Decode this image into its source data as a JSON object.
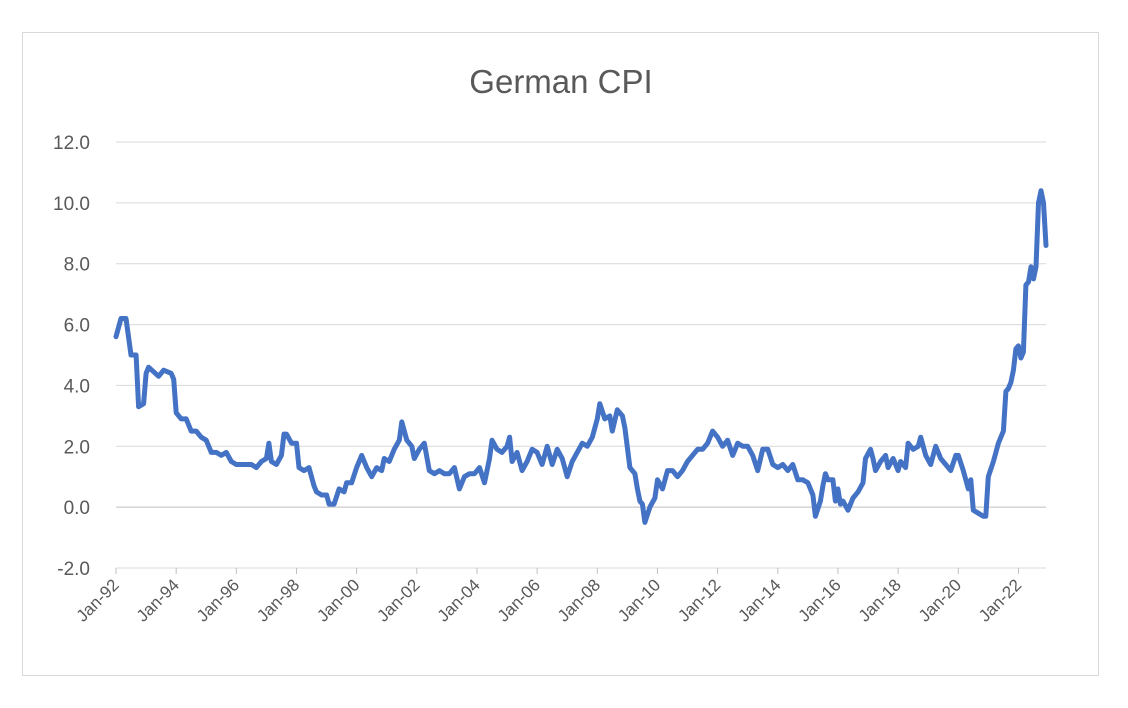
{
  "chart_data": {
    "type": "line",
    "title": "German CPI",
    "xlabel": "",
    "ylabel": "",
    "ylim": [
      -2.0,
      12.0
    ],
    "yticks": [
      "-2.0",
      "0.0",
      "2.0",
      "4.0",
      "6.0",
      "8.0",
      "10.0",
      "12.0"
    ],
    "xticks": [
      "Jan-92",
      "Jan-94",
      "Jan-96",
      "Jan-98",
      "Jan-00",
      "Jan-02",
      "Jan-04",
      "Jan-06",
      "Jan-08",
      "Jan-10",
      "Jan-12",
      "Jan-14",
      "Jan-16",
      "Jan-18",
      "Jan-20",
      "Jan-22"
    ],
    "grid": true,
    "legend": "none",
    "x_range": [
      "Jan-92",
      "Dec-22"
    ],
    "series": [
      {
        "color": "#4472c4",
        "points": [
          [
            "Jan-92",
            5.6
          ],
          [
            "Mar-92",
            6.2
          ],
          [
            "May-92",
            6.2
          ],
          [
            "Jul-92",
            5.0
          ],
          [
            "Sep-92",
            5.0
          ],
          [
            "Oct-92",
            3.3
          ],
          [
            "Dec-92",
            3.4
          ],
          [
            "Jan-93",
            4.4
          ],
          [
            "Feb-93",
            4.6
          ],
          [
            "Jun-93",
            4.3
          ],
          [
            "Aug-93",
            4.5
          ],
          [
            "Nov-93",
            4.4
          ],
          [
            "Dec-93",
            4.2
          ],
          [
            "Jan-94",
            3.1
          ],
          [
            "Mar-94",
            2.9
          ],
          [
            "May-94",
            2.9
          ],
          [
            "Jul-94",
            2.5
          ],
          [
            "Sep-94",
            2.5
          ],
          [
            "Nov-94",
            2.3
          ],
          [
            "Jan-95",
            2.2
          ],
          [
            "Mar-95",
            1.8
          ],
          [
            "May-95",
            1.8
          ],
          [
            "Jul-95",
            1.7
          ],
          [
            "Sep-95",
            1.8
          ],
          [
            "Nov-95",
            1.5
          ],
          [
            "Jan-96",
            1.4
          ],
          [
            "Mar-96",
            1.4
          ],
          [
            "May-96",
            1.4
          ],
          [
            "Jul-96",
            1.4
          ],
          [
            "Sep-96",
            1.3
          ],
          [
            "Nov-96",
            1.5
          ],
          [
            "Jan-97",
            1.6
          ],
          [
            "Feb-97",
            2.1
          ],
          [
            "Mar-97",
            1.5
          ],
          [
            "May-97",
            1.4
          ],
          [
            "Jul-97",
            1.7
          ],
          [
            "Aug-97",
            2.4
          ],
          [
            "Sep-97",
            2.4
          ],
          [
            "Nov-97",
            2.1
          ],
          [
            "Jan-98",
            2.1
          ],
          [
            "Feb-98",
            1.3
          ],
          [
            "Apr-98",
            1.2
          ],
          [
            "Jun-98",
            1.3
          ],
          [
            "Aug-98",
            0.7
          ],
          [
            "Sep-98",
            0.5
          ],
          [
            "Nov-98",
            0.4
          ],
          [
            "Jan-99",
            0.4
          ],
          [
            "Feb-99",
            0.1
          ],
          [
            "Apr-99",
            0.1
          ],
          [
            "Jun-99",
            0.6
          ],
          [
            "Aug-99",
            0.5
          ],
          [
            "Sep-99",
            0.8
          ],
          [
            "Nov-99",
            0.8
          ],
          [
            "Jan-00",
            1.3
          ],
          [
            "Mar-00",
            1.7
          ],
          [
            "May-00",
            1.3
          ],
          [
            "Jul-00",
            1.0
          ],
          [
            "Sep-00",
            1.3
          ],
          [
            "Nov-00",
            1.2
          ],
          [
            "Dec-00",
            1.6
          ],
          [
            "Feb-01",
            1.5
          ],
          [
            "Apr-01",
            1.9
          ],
          [
            "Jun-01",
            2.2
          ],
          [
            "Jul-01",
            2.8
          ],
          [
            "Sep-01",
            2.2
          ],
          [
            "Nov-01",
            2.0
          ],
          [
            "Dec-01",
            1.6
          ],
          [
            "Feb-02",
            1.9
          ],
          [
            "Apr-02",
            2.1
          ],
          [
            "Jun-02",
            1.2
          ],
          [
            "Aug-02",
            1.1
          ],
          [
            "Oct-02",
            1.2
          ],
          [
            "Dec-02",
            1.1
          ],
          [
            "Feb-03",
            1.1
          ],
          [
            "Apr-03",
            1.3
          ],
          [
            "Jun-03",
            0.6
          ],
          [
            "Aug-03",
            1.0
          ],
          [
            "Oct-03",
            1.1
          ],
          [
            "Dec-03",
            1.1
          ],
          [
            "Feb-04",
            1.3
          ],
          [
            "Apr-04",
            0.8
          ],
          [
            "Jun-04",
            1.6
          ],
          [
            "Jul-04",
            2.2
          ],
          [
            "Sep-04",
            1.9
          ],
          [
            "Nov-04",
            1.8
          ],
          [
            "Jan-05",
            2.0
          ],
          [
            "Feb-05",
            2.3
          ],
          [
            "Mar-05",
            1.5
          ],
          [
            "May-05",
            1.8
          ],
          [
            "Jul-05",
            1.2
          ],
          [
            "Sep-05",
            1.5
          ],
          [
            "Nov-05",
            1.9
          ],
          [
            "Jan-06",
            1.8
          ],
          [
            "Mar-06",
            1.4
          ],
          [
            "May-06",
            2.0
          ],
          [
            "Jul-06",
            1.4
          ],
          [
            "Sep-06",
            1.9
          ],
          [
            "Nov-06",
            1.6
          ],
          [
            "Jan-07",
            1.0
          ],
          [
            "Mar-07",
            1.5
          ],
          [
            "May-07",
            1.8
          ],
          [
            "Jul-07",
            2.1
          ],
          [
            "Sep-07",
            2.0
          ],
          [
            "Nov-07",
            2.3
          ],
          [
            "Jan-08",
            2.9
          ],
          [
            "Feb-08",
            3.4
          ],
          [
            "Apr-08",
            2.9
          ],
          [
            "Jun-08",
            3.0
          ],
          [
            "Jul-08",
            2.5
          ],
          [
            "Sep-08",
            3.2
          ],
          [
            "Nov-08",
            3.0
          ],
          [
            "Dec-08",
            2.6
          ],
          [
            "Feb-09",
            1.3
          ],
          [
            "Apr-09",
            1.1
          ],
          [
            "May-09",
            0.6
          ],
          [
            "Jun-09",
            0.2
          ],
          [
            "Jul-09",
            0.1
          ],
          [
            "Aug-09",
            -0.5
          ],
          [
            "Oct-09",
            0.0
          ],
          [
            "Dec-09",
            0.3
          ],
          [
            "Jan-10",
            0.9
          ],
          [
            "Mar-10",
            0.6
          ],
          [
            "May-10",
            1.2
          ],
          [
            "Jul-10",
            1.2
          ],
          [
            "Sep-10",
            1.0
          ],
          [
            "Nov-10",
            1.2
          ],
          [
            "Jan-11",
            1.5
          ],
          [
            "Mar-11",
            1.7
          ],
          [
            "May-11",
            1.9
          ],
          [
            "Jul-11",
            1.9
          ],
          [
            "Sep-11",
            2.1
          ],
          [
            "Nov-11",
            2.5
          ],
          [
            "Jan-12",
            2.3
          ],
          [
            "Mar-12",
            2.0
          ],
          [
            "May-12",
            2.2
          ],
          [
            "Jul-12",
            1.7
          ],
          [
            "Sep-12",
            2.1
          ],
          [
            "Nov-12",
            2.0
          ],
          [
            "Jan-13",
            2.0
          ],
          [
            "Mar-13",
            1.7
          ],
          [
            "May-13",
            1.2
          ],
          [
            "Jul-13",
            1.9
          ],
          [
            "Sep-13",
            1.9
          ],
          [
            "Nov-13",
            1.4
          ],
          [
            "Jan-14",
            1.3
          ],
          [
            "Mar-14",
            1.4
          ],
          [
            "May-14",
            1.2
          ],
          [
            "Jul-14",
            1.4
          ],
          [
            "Sep-14",
            0.9
          ],
          [
            "Nov-14",
            0.9
          ],
          [
            "Jan-15",
            0.8
          ],
          [
            "Mar-15",
            0.4
          ],
          [
            "Apr-15",
            -0.3
          ],
          [
            "Jun-15",
            0.2
          ],
          [
            "Jul-15",
            0.7
          ],
          [
            "Aug-15",
            1.1
          ],
          [
            "Sep-15",
            0.9
          ],
          [
            "Nov-15",
            0.9
          ],
          [
            "Dec-15",
            0.2
          ],
          [
            "Jan-16",
            0.6
          ],
          [
            "Feb-16",
            0.1
          ],
          [
            "Mar-16",
            0.2
          ],
          [
            "May-16",
            -0.1
          ],
          [
            "Jul-16",
            0.3
          ],
          [
            "Sep-16",
            0.5
          ],
          [
            "Nov-16",
            0.8
          ],
          [
            "Dec-16",
            1.6
          ],
          [
            "Feb-17",
            1.9
          ],
          [
            "Mar-17",
            1.6
          ],
          [
            "Apr-17",
            1.2
          ],
          [
            "Jun-17",
            1.5
          ],
          [
            "Aug-17",
            1.7
          ],
          [
            "Sep-17",
            1.3
          ],
          [
            "Nov-17",
            1.6
          ],
          [
            "Jan-18",
            1.2
          ],
          [
            "Feb-18",
            1.5
          ],
          [
            "Apr-18",
            1.3
          ],
          [
            "May-18",
            2.1
          ],
          [
            "Jul-18",
            1.9
          ],
          [
            "Sep-18",
            2.0
          ],
          [
            "Oct-18",
            2.3
          ],
          [
            "Dec-18",
            1.7
          ],
          [
            "Feb-19",
            1.4
          ],
          [
            "Apr-19",
            2.0
          ],
          [
            "Jun-19",
            1.6
          ],
          [
            "Aug-19",
            1.4
          ],
          [
            "Oct-19",
            1.2
          ],
          [
            "Dec-19",
            1.7
          ],
          [
            "Jan-20",
            1.7
          ],
          [
            "Mar-20",
            1.2
          ],
          [
            "May-20",
            0.6
          ],
          [
            "Jun-20",
            0.9
          ],
          [
            "Jul-20",
            -0.1
          ],
          [
            "Sep-20",
            -0.2
          ],
          [
            "Nov-20",
            -0.3
          ],
          [
            "Dec-20",
            -0.3
          ],
          [
            "Jan-21",
            1.0
          ],
          [
            "Mar-21",
            1.5
          ],
          [
            "May-21",
            2.1
          ],
          [
            "Jul-21",
            2.5
          ],
          [
            "Aug-21",
            3.8
          ],
          [
            "Sep-21",
            3.9
          ],
          [
            "Oct-21",
            4.1
          ],
          [
            "Nov-21",
            4.5
          ],
          [
            "Dec-21",
            5.2
          ],
          [
            "Jan-22",
            5.3
          ],
          [
            "Feb-22",
            4.9
          ],
          [
            "Mar-22",
            5.1
          ],
          [
            "Apr-22",
            7.3
          ],
          [
            "May-22",
            7.4
          ],
          [
            "Jun-22",
            7.9
          ],
          [
            "Jul-22",
            7.5
          ],
          [
            "Aug-22",
            7.9
          ],
          [
            "Sep-22",
            10.0
          ],
          [
            "Oct-22",
            10.4
          ],
          [
            "Nov-22",
            10.0
          ],
          [
            "Dec-22",
            8.6
          ]
        ]
      }
    ]
  }
}
